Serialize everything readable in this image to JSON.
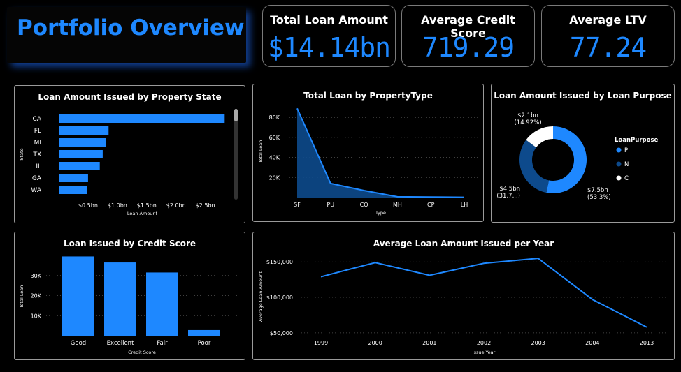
{
  "title": "Portfolio Overview",
  "kpis": {
    "total_loan": {
      "label": "Total Loan Amount",
      "value": "$14.14bn"
    },
    "avg_credit": {
      "label": "Average Credit Score",
      "value": "719.29"
    },
    "avg_ltv": {
      "label": "Average LTV",
      "value": "77.24"
    }
  },
  "colors": {
    "accent": "#1e88ff",
    "dark_blue": "#0d4a8c",
    "white": "#ffffff",
    "background": "#000000"
  },
  "chart_data": [
    {
      "id": "state",
      "type": "bar",
      "orientation": "horizontal",
      "title": "Loan Amount Issued by Property State",
      "xlabel": "Loan Amount",
      "ylabel": "State",
      "categories": [
        "CA",
        "FL",
        "MI",
        "TX",
        "IL",
        "GA",
        "WA"
      ],
      "values": [
        2.83,
        0.85,
        0.8,
        0.75,
        0.7,
        0.5,
        0.48
      ],
      "xticks": [
        "$0.5bn",
        "$1.0bn",
        "$1.5bn",
        "$2.0bn",
        "$2.5bn"
      ],
      "xtick_values": [
        0.5,
        1.0,
        1.5,
        2.0,
        2.5
      ],
      "xlim": [
        0,
        2.85
      ]
    },
    {
      "id": "ptype",
      "type": "area",
      "title": "Total Loan by PropertyType",
      "xlabel": "Type",
      "ylabel": "Total Loan",
      "categories": [
        "SF",
        "PU",
        "CO",
        "MH",
        "CP",
        "LH"
      ],
      "values": [
        89000,
        14000,
        7000,
        800,
        500,
        300
      ],
      "yticks": [
        "20K",
        "40K",
        "60K",
        "80K"
      ],
      "ytick_values": [
        20000,
        40000,
        60000,
        80000
      ],
      "ylim": [
        0,
        92000
      ]
    },
    {
      "id": "purpose",
      "type": "pie",
      "title": "Loan Amount Issued by Loan Purpose",
      "legend_title": "LoanPurpose",
      "legend_position": "right",
      "slices": [
        {
          "name": "P",
          "value": 7.5,
          "percent": 53.3,
          "label_value": "$7.5bn",
          "label_pct": "(53.3%)"
        },
        {
          "name": "N",
          "value": 4.5,
          "percent": 31.78,
          "label_value": "$4.5bn",
          "label_pct": "(31.7...)"
        },
        {
          "name": "C",
          "value": 2.1,
          "percent": 14.92,
          "label_value": "$2.1bn",
          "label_pct": "(14.92%)"
        }
      ]
    },
    {
      "id": "credit",
      "type": "bar",
      "title": "Loan Issued by Credit Score",
      "xlabel": "Credit Score",
      "ylabel": "Total Loan",
      "categories": [
        "Good",
        "Excellent",
        "Fair",
        "Poor"
      ],
      "values": [
        39500,
        36500,
        31500,
        2800
      ],
      "yticks": [
        "10K",
        "20K",
        "30K"
      ],
      "ytick_values": [
        10000,
        20000,
        30000
      ],
      "ylim": [
        0,
        40000
      ]
    },
    {
      "id": "year",
      "type": "line",
      "title": "Average Loan Amount Issued per Year",
      "xlabel": "Issue Year",
      "ylabel": "Average Loan Amount",
      "categories": [
        "1999",
        "2000",
        "2001",
        "2002",
        "2003",
        "2004",
        "2013"
      ],
      "values": [
        129000,
        149000,
        131000,
        148000,
        155000,
        97000,
        58000
      ],
      "yticks": [
        "$50,000",
        "$100,000",
        "$150,000"
      ],
      "ytick_values": [
        50000,
        100000,
        150000
      ],
      "ylim": [
        44000,
        162000
      ],
      "grid": true
    }
  ]
}
